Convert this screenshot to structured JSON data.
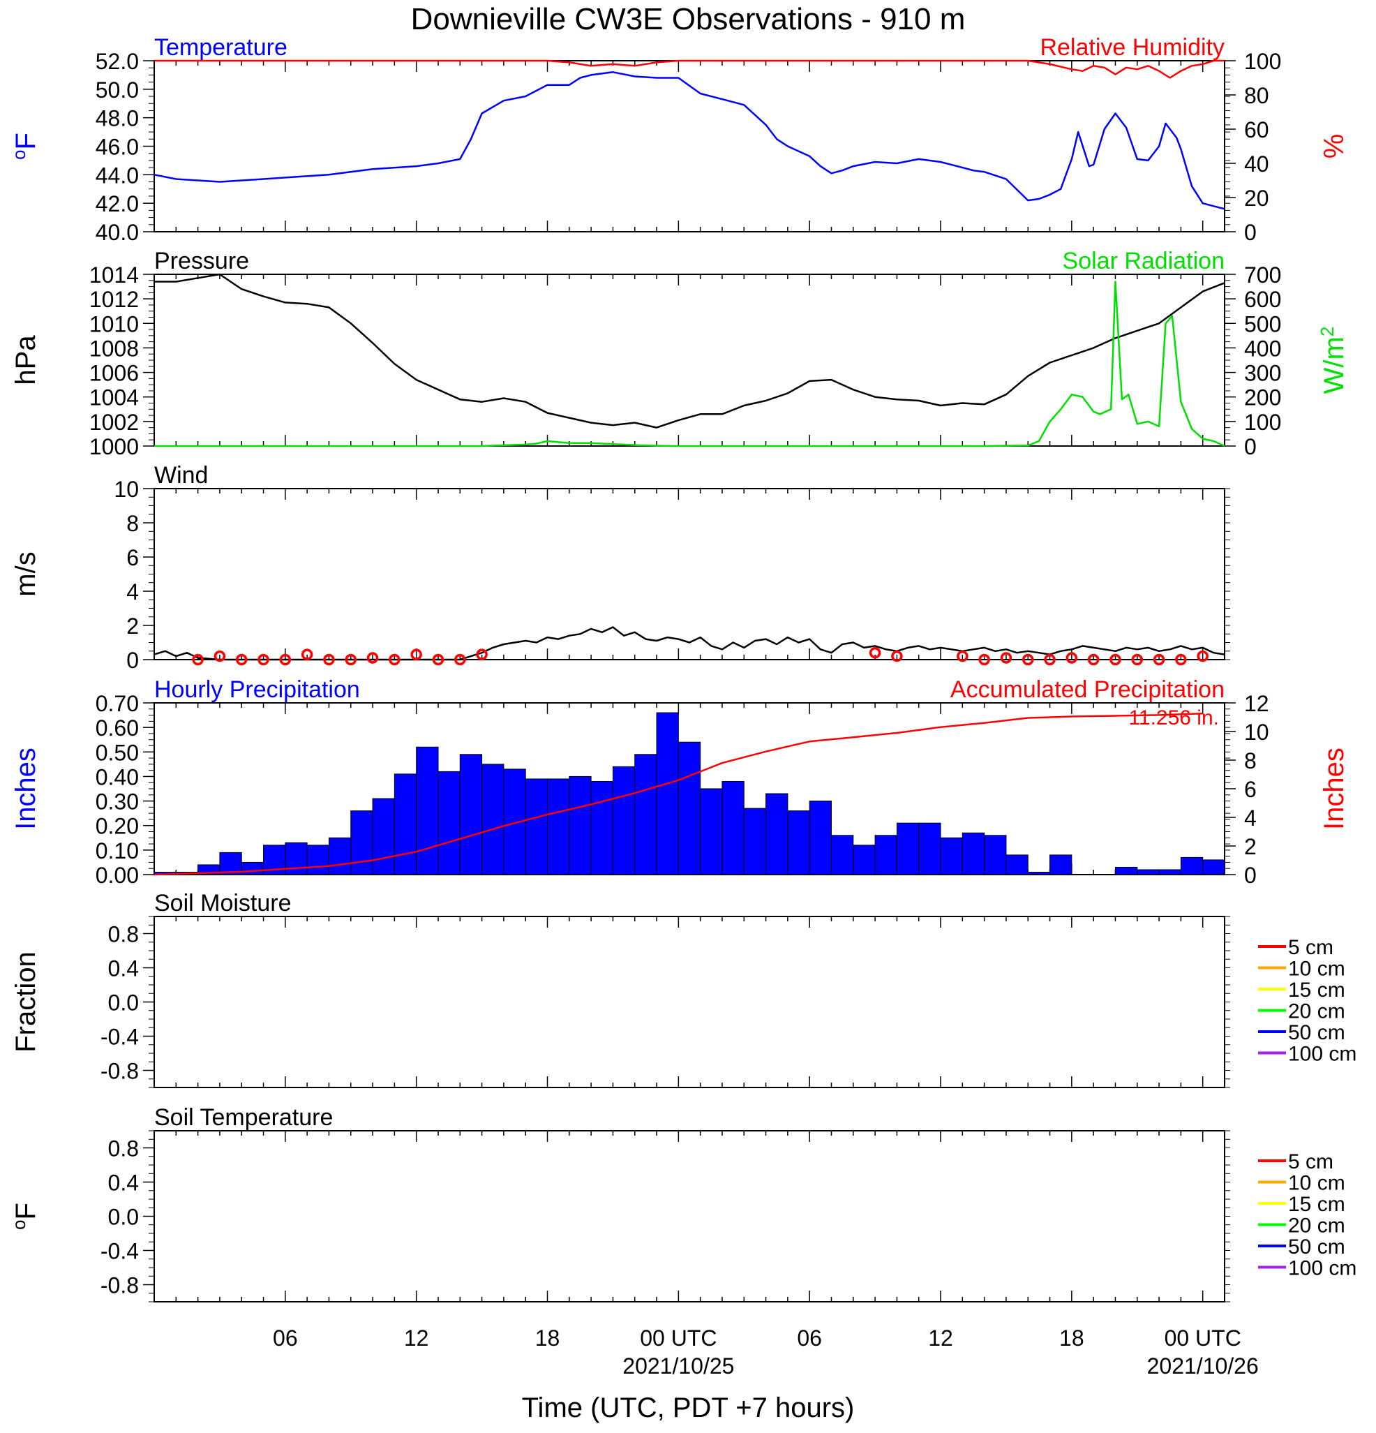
{
  "title": "Downieville CW3E Observations - 910 m",
  "xlabel": "Time (UTC, PDT +7 hours)",
  "x_ticks": [
    {
      "hour": 6,
      "label": "06",
      "sub": ""
    },
    {
      "hour": 12,
      "label": "12",
      "sub": ""
    },
    {
      "hour": 18,
      "label": "18",
      "sub": ""
    },
    {
      "hour": 24,
      "label": "00 UTC",
      "sub": "2021/10/25"
    },
    {
      "hour": 30,
      "label": "06",
      "sub": ""
    },
    {
      "hour": 36,
      "label": "12",
      "sub": ""
    },
    {
      "hour": 42,
      "label": "18",
      "sub": ""
    },
    {
      "hour": 48,
      "label": "00 UTC",
      "sub": "2021/10/26"
    }
  ],
  "colors": {
    "blue": "#0000ff",
    "red": "#ff0000",
    "green": "#00e000",
    "black": "#000000"
  },
  "chart_data": [
    {
      "id": "temperature",
      "type": "line",
      "title_left": "Temperature",
      "title_right": "Relative Humidity",
      "ylabel_left": "oF",
      "ylabel_right": "%",
      "ylim_left": [
        40,
        52
      ],
      "ylim_right": [
        0,
        100
      ],
      "yticks_left": [
        "40.0",
        "42.0",
        "44.0",
        "46.0",
        "48.0",
        "50.0",
        "52.0"
      ],
      "yticks_right": [
        "0",
        "20",
        "40",
        "60",
        "80",
        "100"
      ],
      "series": [
        {
          "name": "Temperature",
          "axis": "left",
          "color": "#0000ff",
          "x": [
            0,
            1,
            2,
            3,
            4,
            5,
            6,
            8,
            10,
            12,
            13,
            14,
            14.5,
            15,
            16,
            17,
            18,
            19,
            19.5,
            20,
            21,
            22,
            23,
            24,
            25,
            26,
            27,
            28,
            28.5,
            29,
            30,
            30.5,
            31,
            31.5,
            32,
            33,
            34,
            35,
            36,
            37,
            37.5,
            38,
            39,
            40,
            40.5,
            41,
            41.5,
            42,
            42.3,
            42.8,
            43,
            43.5,
            44,
            44.5,
            45,
            45.5,
            46,
            46.3,
            46.8,
            47,
            47.5,
            48,
            48.5,
            49
          ],
          "y": [
            44.0,
            43.7,
            43.6,
            43.5,
            43.6,
            43.7,
            43.8,
            44.0,
            44.4,
            44.6,
            44.8,
            45.1,
            46.5,
            48.3,
            49.2,
            49.5,
            50.3,
            50.3,
            50.8,
            51.0,
            51.2,
            50.9,
            50.8,
            50.8,
            49.7,
            49.3,
            48.9,
            47.5,
            46.5,
            46.0,
            45.3,
            44.6,
            44.1,
            44.3,
            44.6,
            44.9,
            44.8,
            45.1,
            44.9,
            44.5,
            44.3,
            44.2,
            43.7,
            42.2,
            42.3,
            42.6,
            43.0,
            45.1,
            47.0,
            44.6,
            44.7,
            47.2,
            48.3,
            47.3,
            45.1,
            45.0,
            46.0,
            47.6,
            46.6,
            45.8,
            43.2,
            42.0,
            41.8,
            41.6
          ]
        },
        {
          "name": "Relative Humidity",
          "axis": "right",
          "color": "#ff0000",
          "x": [
            0,
            18,
            19,
            20,
            21,
            22,
            23,
            24,
            28,
            30,
            38,
            40,
            41,
            42,
            42.5,
            43,
            43.5,
            44,
            44.5,
            45,
            45.5,
            46,
            46.5,
            47,
            47.5,
            48,
            48.5,
            49
          ],
          "y": [
            100,
            100,
            99,
            97,
            98,
            97,
            99,
            100,
            100,
            100,
            100,
            100,
            98,
            95,
            94,
            97,
            96,
            92,
            96,
            95,
            97,
            94,
            90,
            94,
            97,
            98,
            100,
            100
          ]
        }
      ]
    },
    {
      "id": "pressure",
      "type": "line",
      "title_left": "Pressure",
      "title_right": "Solar Radiation",
      "ylabel_left": "hPa",
      "ylabel_right": "W/m2",
      "ylim_left": [
        1000,
        1014
      ],
      "ylim_right": [
        0,
        700
      ],
      "yticks_left": [
        "1000",
        "1002",
        "1004",
        "1006",
        "1008",
        "1010",
        "1012",
        "1014"
      ],
      "yticks_right": [
        "0",
        "100",
        "200",
        "300",
        "400",
        "500",
        "600",
        "700"
      ],
      "series": [
        {
          "name": "Pressure",
          "axis": "left",
          "color": "#000000",
          "x": [
            0,
            1,
            2,
            3,
            4,
            5,
            6,
            7,
            8,
            9,
            10,
            11,
            12,
            13,
            14,
            15,
            16,
            17,
            18,
            19,
            20,
            21,
            22,
            23,
            24,
            25,
            26,
            27,
            28,
            29,
            30,
            31,
            32,
            33,
            34,
            35,
            36,
            37,
            38,
            39,
            40,
            41,
            42,
            43,
            44,
            45,
            46,
            47,
            48,
            49
          ],
          "y": [
            1013.4,
            1013.4,
            1013.7,
            1014.0,
            1012.8,
            1012.2,
            1011.7,
            1011.6,
            1011.3,
            1010.0,
            1008.4,
            1006.7,
            1005.4,
            1004.6,
            1003.8,
            1003.6,
            1003.9,
            1003.6,
            1002.7,
            1002.3,
            1001.9,
            1001.7,
            1001.9,
            1001.5,
            1002.1,
            1002.6,
            1002.6,
            1003.3,
            1003.7,
            1004.3,
            1005.3,
            1005.4,
            1004.6,
            1004.0,
            1003.8,
            1003.7,
            1003.3,
            1003.5,
            1003.4,
            1004.2,
            1005.7,
            1006.8,
            1007.4,
            1008.0,
            1008.8,
            1009.4,
            1010.0,
            1011.3,
            1012.6,
            1013.3
          ]
        },
        {
          "name": "Solar Radiation",
          "axis": "right",
          "color": "#00e000",
          "x": [
            0,
            15,
            16,
            17,
            17.5,
            18,
            19,
            20,
            21,
            22,
            23,
            24,
            38,
            39,
            40,
            40.5,
            41,
            41.5,
            42,
            42.5,
            43,
            43.3,
            43.8,
            44,
            44.3,
            44.6,
            45,
            45.5,
            46,
            46.3,
            46.6,
            47,
            47.5,
            48,
            48.5,
            49
          ],
          "y": [
            0,
            0,
            3,
            6,
            10,
            20,
            12,
            12,
            8,
            4,
            1,
            0,
            0,
            1,
            2,
            20,
            100,
            150,
            210,
            200,
            140,
            130,
            150,
            670,
            190,
            210,
            90,
            100,
            80,
            500,
            530,
            180,
            70,
            30,
            20,
            0
          ]
        }
      ]
    },
    {
      "id": "wind",
      "type": "line",
      "title_left": "Wind",
      "title_right": "",
      "ylabel_left": "m/s",
      "ylabel_right": "",
      "ylim_left": [
        0,
        10
      ],
      "yticks_left": [
        "0",
        "2",
        "4",
        "6",
        "8",
        "10"
      ],
      "series": [
        {
          "name": "Wind Speed",
          "axis": "left",
          "color": "#000000",
          "x": [
            0,
            0.5,
            1,
            1.5,
            2,
            3,
            4,
            5,
            6,
            7,
            8,
            9,
            10,
            11,
            12,
            13,
            14,
            14.5,
            15,
            15.5,
            16,
            16.5,
            17,
            17.5,
            18,
            18.5,
            19,
            19.5,
            20,
            20.5,
            21,
            21.5,
            22,
            22.5,
            23,
            23.5,
            24,
            24.5,
            25,
            25.5,
            26,
            26.5,
            27,
            27.5,
            28,
            28.5,
            29,
            29.5,
            30,
            30.5,
            31,
            31.5,
            32,
            32.5,
            33,
            33.5,
            34,
            34.5,
            35,
            35.5,
            36,
            36.5,
            37,
            37.5,
            38,
            38.5,
            39,
            39.5,
            40,
            40.5,
            41,
            41.5,
            42,
            42.5,
            43,
            43.5,
            44,
            44.5,
            45,
            45.5,
            46,
            46.5,
            47,
            47.5,
            48,
            48.5,
            49
          ],
          "y": [
            0.3,
            0.5,
            0.2,
            0.4,
            0.1,
            0,
            0,
            0,
            0,
            0,
            0,
            0,
            0,
            0,
            0,
            0,
            0,
            0.2,
            0.4,
            0.7,
            0.9,
            1.0,
            1.1,
            1.0,
            1.3,
            1.2,
            1.4,
            1.5,
            1.8,
            1.6,
            1.9,
            1.4,
            1.6,
            1.2,
            1.1,
            1.3,
            1.2,
            1.0,
            1.3,
            0.8,
            0.6,
            1.0,
            0.7,
            1.1,
            1.2,
            0.9,
            1.3,
            1.0,
            1.2,
            0.6,
            0.4,
            0.9,
            1.0,
            0.7,
            0.8,
            0.6,
            0.5,
            0.7,
            0.8,
            0.6,
            0.7,
            0.6,
            0.5,
            0.6,
            0.7,
            0.5,
            0.6,
            0.4,
            0.5,
            0.4,
            0.3,
            0.5,
            0.6,
            0.8,
            0.7,
            0.6,
            0.5,
            0.7,
            0.6,
            0.7,
            0.5,
            0.6,
            0.8,
            0.6,
            0.7,
            0.4,
            0.3
          ]
        },
        {
          "name": "Wind Barbs",
          "axis": "left",
          "color": "#ff0000",
          "x": [
            2,
            3,
            4,
            5,
            6,
            7,
            8,
            9,
            10,
            11,
            12,
            13,
            14,
            15,
            33,
            34,
            37,
            38,
            39,
            40,
            41,
            42,
            43,
            44,
            45,
            46,
            47,
            48
          ],
          "y": [
            0,
            0.2,
            0,
            0,
            0,
            0.3,
            0,
            0,
            0.1,
            0,
            0.3,
            0,
            0,
            0.3,
            0.4,
            0.2,
            0.2,
            0,
            0.1,
            0,
            0,
            0.1,
            0,
            0,
            0,
            0,
            0,
            0.2
          ]
        }
      ]
    },
    {
      "id": "precipitation",
      "type": "bar",
      "title_left": "Hourly Precipitation",
      "title_right": "Accumulated Precipitation",
      "annotation": "11.256 in.",
      "ylabel_left": "Inches",
      "ylabel_right": "Inches",
      "ylim_left": [
        0,
        0.7
      ],
      "ylim_right": [
        0,
        12
      ],
      "yticks_left": [
        "0.00",
        "0.10",
        "0.20",
        "0.30",
        "0.40",
        "0.50",
        "0.60",
        "0.70"
      ],
      "yticks_right": [
        "0",
        "2",
        "4",
        "6",
        "8",
        "10",
        "12"
      ],
      "series": [
        {
          "name": "Hourly Precipitation",
          "axis": "left",
          "color": "#0000ff",
          "x": [
            0,
            1,
            2,
            3,
            4,
            5,
            6,
            7,
            8,
            9,
            10,
            11,
            12,
            13,
            14,
            15,
            16,
            17,
            18,
            19,
            20,
            21,
            22,
            23,
            24,
            25,
            26,
            27,
            28,
            29,
            30,
            31,
            32,
            33,
            34,
            35,
            36,
            37,
            38,
            39,
            40,
            41,
            42,
            43,
            44,
            45,
            46,
            47,
            48
          ],
          "y": [
            0.01,
            0.01,
            0.04,
            0.09,
            0.05,
            0.12,
            0.13,
            0.12,
            0.15,
            0.26,
            0.31,
            0.41,
            0.52,
            0.42,
            0.49,
            0.45,
            0.43,
            0.39,
            0.39,
            0.4,
            0.38,
            0.44,
            0.49,
            0.66,
            0.54,
            0.35,
            0.38,
            0.27,
            0.33,
            0.26,
            0.3,
            0.16,
            0.12,
            0.16,
            0.21,
            0.21,
            0.15,
            0.17,
            0.16,
            0.08,
            0.01,
            0.08,
            0,
            0,
            0.03,
            0.02,
            0.02,
            0.07,
            0.06
          ]
        },
        {
          "name": "Accumulated Precipitation",
          "axis": "right",
          "color": "#ff0000",
          "x": [
            0,
            2,
            4,
            6,
            8,
            10,
            12,
            14,
            16,
            18,
            20,
            22,
            24,
            26,
            28,
            30,
            32,
            34,
            36,
            38,
            40,
            42,
            44,
            46,
            48
          ],
          "y": [
            0,
            0.1,
            0.2,
            0.4,
            0.6,
            1.0,
            1.6,
            2.5,
            3.4,
            4.2,
            4.9,
            5.7,
            6.6,
            7.8,
            8.6,
            9.3,
            9.6,
            9.9,
            10.3,
            10.6,
            10.95,
            11.05,
            11.1,
            11.15,
            11.256
          ]
        }
      ]
    },
    {
      "id": "soil_moisture",
      "type": "line",
      "title_left": "Soil Moisture",
      "title_right": "",
      "ylabel_left": "Fraction",
      "ylabel_right": "",
      "ylim_left": [
        -1,
        1
      ],
      "yticks_left": [
        "-0.8",
        "-0.4",
        "0.0",
        "0.4",
        "0.8"
      ],
      "legend": [
        {
          "name": "5 cm",
          "color": "#ff0000"
        },
        {
          "name": "10 cm",
          "color": "#ffa500"
        },
        {
          "name": "15 cm",
          "color": "#ffff00"
        },
        {
          "name": "20 cm",
          "color": "#00ff00"
        },
        {
          "name": "50 cm",
          "color": "#0000ff"
        },
        {
          "name": "100 cm",
          "color": "#a020f0"
        }
      ],
      "series": []
    },
    {
      "id": "soil_temperature",
      "type": "line",
      "title_left": "Soil Temperature",
      "title_right": "",
      "ylabel_left": "oF",
      "ylabel_right": "",
      "ylim_left": [
        -1,
        1
      ],
      "yticks_left": [
        "-0.8",
        "-0.4",
        "0.0",
        "0.4",
        "0.8"
      ],
      "legend": [
        {
          "name": "5 cm",
          "color": "#ff0000"
        },
        {
          "name": "10 cm",
          "color": "#ffa500"
        },
        {
          "name": "15 cm",
          "color": "#ffff00"
        },
        {
          "name": "20 cm",
          "color": "#00ff00"
        },
        {
          "name": "50 cm",
          "color": "#0000ff"
        },
        {
          "name": "100 cm",
          "color": "#a020f0"
        }
      ],
      "series": []
    }
  ]
}
